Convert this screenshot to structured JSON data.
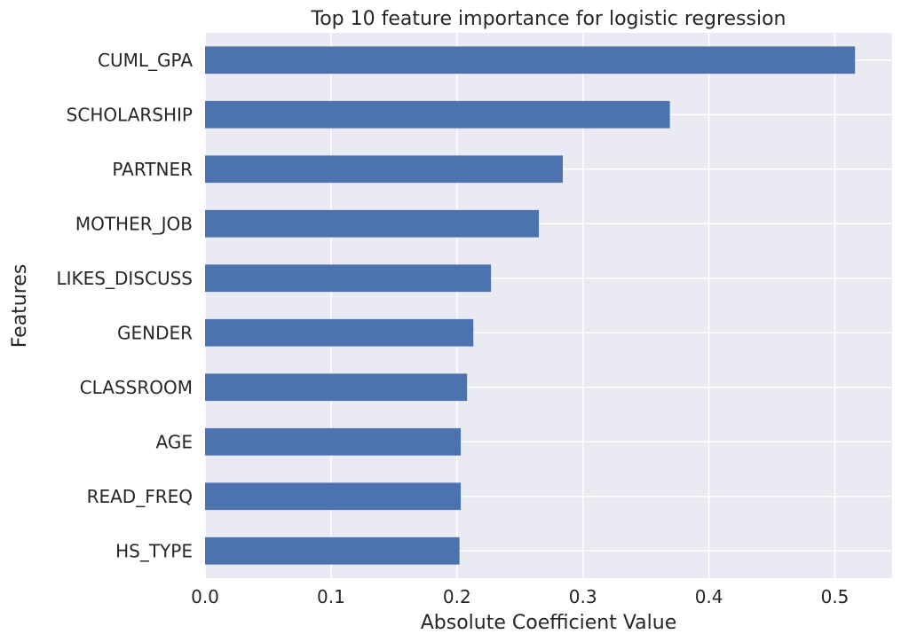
{
  "chart_data": {
    "type": "bar",
    "orientation": "horizontal",
    "title": "Top 10 feature importance for logistic regression",
    "xlabel": "Absolute Coefficient Value",
    "ylabel": "Features",
    "categories": [
      "CUML_GPA",
      "SCHOLARSHIP",
      "PARTNER",
      "MOTHER_JOB",
      "LIKES_DISCUSS",
      "GENDER",
      "CLASSROOM",
      "AGE",
      "READ_FREQ",
      "HS_TYPE"
    ],
    "values": [
      0.516,
      0.369,
      0.284,
      0.265,
      0.227,
      0.213,
      0.208,
      0.203,
      0.203,
      0.202
    ],
    "xlim": [
      0,
      0.545
    ],
    "xticks": [
      "0.0",
      "0.1",
      "0.2",
      "0.3",
      "0.4",
      "0.5"
    ],
    "grid": true,
    "legend": false,
    "colors": {
      "bar": "#4c72b0",
      "plot_background": "#eaeaf2",
      "grid": "#ffffff",
      "text": "#262626"
    }
  }
}
